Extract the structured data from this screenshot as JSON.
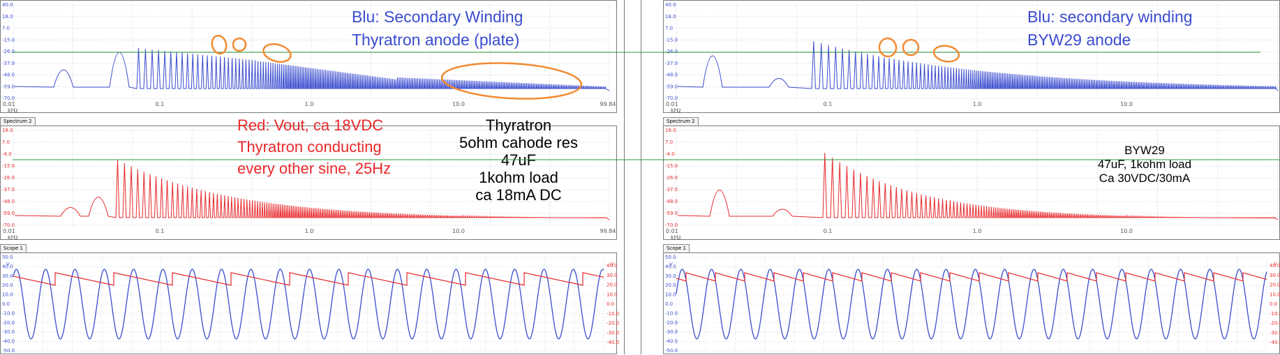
{
  "colors": {
    "blue": "#3a4ccf",
    "red": "#e8282b",
    "orange": "#f28a30",
    "green": "#2e9a3a"
  },
  "left": {
    "spectrum1": {
      "x_ticks": [
        "0.01",
        "0.1",
        "1.0",
        "10.0",
        "99.84"
      ],
      "y_ticks": [
        "40.0",
        "18.0",
        "7.0",
        "-15.0",
        "-26.0",
        "-37.0",
        "-48.0",
        "-59.0",
        "-70.0"
      ],
      "unit": "kHz",
      "annotation_lines": [
        "Blu: Secondary Winding",
        "Thyratron anode (plate)"
      ]
    },
    "spectrum2": {
      "tab": "Spectrum 2",
      "x_ticks": [
        "0.01",
        "0.1",
        "1.0",
        "10.0",
        "99.84"
      ],
      "y_ticks": [
        "18.0",
        "7.0",
        "-4.0",
        "-15.0",
        "-26.0",
        "-37.0",
        "-48.0",
        "-59.0",
        "-70.0"
      ],
      "unit": "kHz",
      "annotation_red": [
        "Red: Vout, ca 18VDC",
        "Thyratron conducting",
        "every other sine, 25Hz"
      ],
      "annotation_black": [
        "Thyratron",
        "5ohm cahode res",
        "47uF",
        "1kohm load",
        "ca 18mA DC"
      ]
    },
    "scope": {
      "tab": "Scope 1",
      "y_ticks_left": [
        "50.0",
        "40.0",
        "30.0",
        "20.0",
        "10.0",
        "0.0",
        "-10.0",
        "-20.0",
        "-30.0",
        "-40.0",
        "-50.0"
      ],
      "y_ticks_right": [
        "40.0",
        "30.0",
        "20.0",
        "10.0",
        "0.0",
        "-10.0",
        "-20.0",
        "-30.0",
        "-40.0"
      ],
      "unit": "V"
    }
  },
  "right": {
    "spectrum1": {
      "x_ticks": [
        "0.01",
        "0.1",
        "1.0",
        "10.0"
      ],
      "y_ticks": [
        "40.0",
        "18.0",
        "7.0",
        "-15.0",
        "-26.0",
        "-37.0",
        "-48.0",
        "-59.0",
        "-70.0"
      ],
      "unit": "kHz",
      "annotation_lines": [
        "Blu: secondary winding",
        "BYW29 anode"
      ]
    },
    "spectrum2": {
      "tab": "Spectrum 2",
      "x_ticks": [
        "0.01",
        "0.1",
        "1.0",
        "10.0"
      ],
      "y_ticks": [
        "18.0",
        "7.0",
        "-4.0",
        "-15.0",
        "-26.0",
        "-37.0",
        "-48.0",
        "-59.0",
        "-70.0"
      ],
      "unit": "kHz",
      "annotation_black": [
        "BYW29",
        "47uF, 1kohm load",
        "Ca 30VDC/30mA"
      ]
    },
    "scope": {
      "tab": "Scope 1",
      "y_ticks_left": [
        "50.0",
        "40.0",
        "30.0",
        "20.0",
        "10.0",
        "0.0",
        "-10.0",
        "-20.0",
        "-30.0",
        "-40.0",
        "-50.0"
      ],
      "y_ticks_right": [
        "40.0",
        "30.0",
        "20.0",
        "10.0",
        "0.0",
        "-10.0",
        "-20.0",
        "-30.0",
        "-40.0"
      ],
      "unit": "V"
    }
  }
}
